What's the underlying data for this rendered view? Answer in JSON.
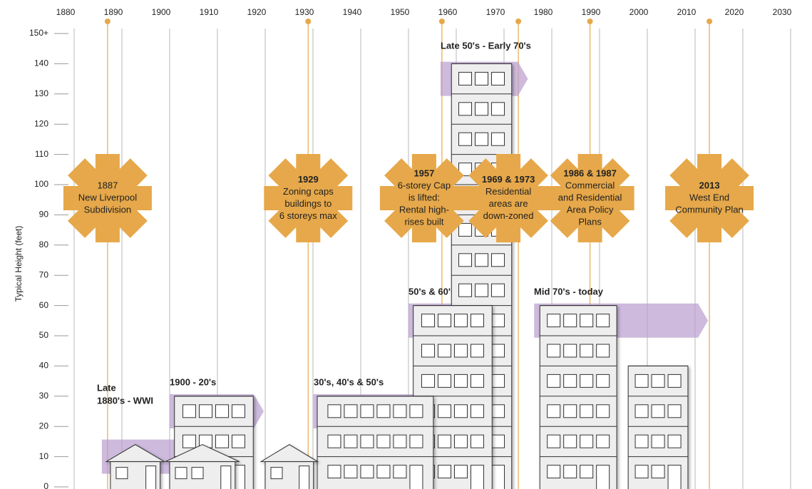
{
  "chart_data": {
    "type": "timeline",
    "ylabel": "Typical Height (feet)",
    "xlim": [
      1880,
      2030
    ],
    "xticks": [
      1880,
      1890,
      1900,
      1910,
      1920,
      1930,
      1940,
      1950,
      1960,
      1970,
      1980,
      1990,
      2000,
      2010,
      2020,
      2030
    ],
    "ylim": [
      0,
      150
    ],
    "yticks": [
      0,
      10,
      20,
      30,
      40,
      50,
      60,
      70,
      80,
      90,
      100,
      110,
      120,
      130,
      {
        "value": 140,
        "label": "140"
      },
      {
        "value": 150,
        "label": "150+"
      }
    ],
    "grid": true,
    "event_color": "#e6a84a",
    "era_color": "#b89ccf",
    "events": [
      {
        "year": 1887,
        "title": "1887",
        "text": [
          "New Liverpool",
          "Subdivision"
        ]
      },
      {
        "year": 1929,
        "title": "1929",
        "text": [
          "Zoning caps",
          "buildings to",
          "6 storeys max"
        ]
      },
      {
        "year": 1957,
        "title": "1957",
        "text": [
          "6-storey Cap",
          "is lifted:",
          "Rental high-",
          "rises built"
        ]
      },
      {
        "year": 1973,
        "title": "1969 & 1973",
        "text": [
          "Residential",
          "areas are",
          "down-zoned"
        ]
      },
      {
        "year": 1988,
        "title": "1986 & 1987",
        "text": [
          "Commercial",
          "and Residential",
          "Area Policy",
          "Plans"
        ]
      },
      {
        "year": 2013,
        "title": "2013",
        "text": [
          "West End",
          "Community Plan"
        ]
      }
    ],
    "eras": [
      {
        "label": [
          "Late",
          "1880's - WWI"
        ],
        "start": 1885.8,
        "end": 1916,
        "height": 10
      },
      {
        "label": [
          "1900 - 20's"
        ],
        "start": 1900,
        "end": 1919.7,
        "height": 25
      },
      {
        "label": [
          "30's, 40's & 50's"
        ],
        "start": 1930.1,
        "end": 1959.7,
        "height": 25
      },
      {
        "label": [
          "50's & 60's"
        ],
        "start": 1950,
        "end": 1969.7,
        "height": 55
      },
      {
        "label": [
          "Late 50's - Early 70's"
        ],
        "start": 1956.7,
        "end": 1975,
        "height": 135
      },
      {
        "label": [
          "Mid 70's - today"
        ],
        "start": 1976.3,
        "end": 2012.7,
        "height": 55
      }
    ],
    "buildings": [
      {
        "kind": "tower",
        "x0": 1959,
        "x1": 1971.6,
        "height": 140
      },
      {
        "kind": "block",
        "x0": 1951,
        "x1": 1967.5,
        "height": 60
      },
      {
        "kind": "block",
        "x0": 1930.9,
        "x1": 1955.2,
        "height": 30
      },
      {
        "kind": "block",
        "x0": 1901,
        "x1": 1917.5,
        "height": 30
      },
      {
        "kind": "block",
        "x0": 1977.5,
        "x1": 1993.6,
        "height": 60
      },
      {
        "kind": "block",
        "x0": 1996,
        "x1": 2008.5,
        "height": 40
      },
      {
        "kind": "house",
        "x0": 1887.6,
        "x1": 1898,
        "height": 14
      },
      {
        "kind": "house",
        "x0": 1900,
        "x1": 1913.7,
        "height": 14
      },
      {
        "kind": "house",
        "x0": 1920,
        "x1": 1930.1,
        "height": 14
      }
    ]
  }
}
